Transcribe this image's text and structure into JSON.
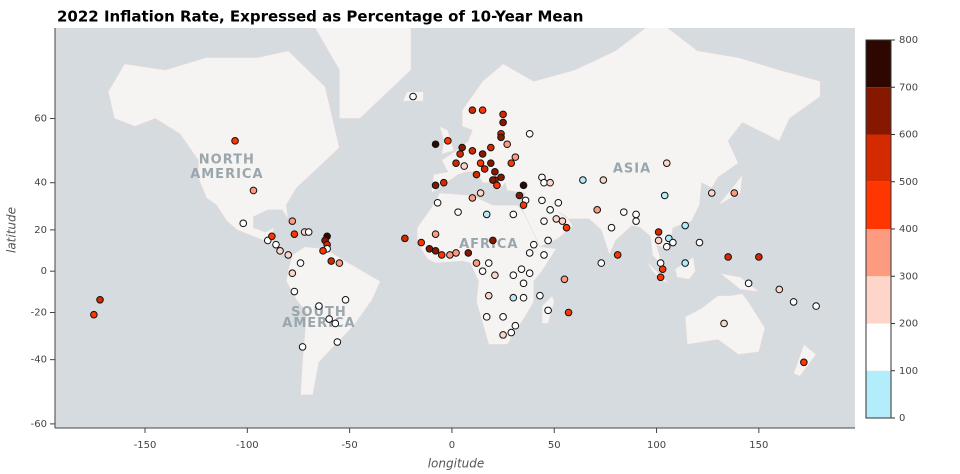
{
  "chart_data": {
    "type": "scatter",
    "title": "2022 Inflation Rate, Expressed as Percentage of 10-Year Mean",
    "x_label": "longitude",
    "y_label": "latitude",
    "y_scale": "mercator",
    "xlim": [
      -194,
      197
    ],
    "ylim": [
      -61,
      76
    ],
    "xticks": [
      -150,
      -100,
      -50,
      0,
      50,
      100,
      150
    ],
    "yticks": [
      -60,
      -40,
      -20,
      0,
      20,
      40,
      60
    ],
    "map_labels": [
      "NORTH",
      "AMERICA",
      "SOUTH",
      "AMERICA",
      "AFRICA",
      "ASIA"
    ],
    "x": [
      -172,
      -175,
      -106,
      -97,
      -102,
      -90,
      -88,
      -86,
      -84,
      -80,
      -77,
      -72,
      -70,
      -61,
      -62,
      -61,
      -61,
      -63,
      -78,
      -74,
      -78,
      -77,
      -65,
      -57,
      -73,
      -56,
      -59,
      -55,
      -52,
      -60,
      -19,
      -8,
      -2,
      2,
      -4,
      -8,
      5,
      4,
      10,
      6,
      14,
      15,
      19,
      19,
      24,
      25,
      24,
      25,
      15,
      10,
      27,
      31,
      24,
      21,
      16,
      21,
      20,
      22,
      12,
      14,
      29,
      33,
      35,
      36,
      44,
      45,
      48,
      38,
      64,
      74,
      52,
      44,
      45,
      35,
      51,
      54,
      56,
      48,
      47,
      -23,
      -15,
      -11,
      -8,
      -7,
      3,
      10,
      17,
      30,
      20,
      -5,
      -1,
      -8,
      2,
      8,
      12,
      15,
      18,
      21,
      30,
      34,
      38,
      45,
      38,
      35,
      30,
      35,
      18,
      17,
      25,
      29,
      25,
      31,
      47,
      57,
      55,
      43,
      40,
      71,
      78,
      73,
      81,
      84,
      90,
      90,
      101,
      101,
      105,
      106,
      108,
      102,
      103,
      114,
      102,
      114,
      104,
      105,
      121,
      127,
      138,
      135,
      145,
      133,
      172,
      160,
      167,
      178,
      150
    ],
    "y": [
      -14,
      -21,
      54,
      37,
      23,
      15,
      17,
      13,
      10,
      8,
      18,
      19,
      19,
      17,
      15,
      13,
      11,
      10,
      24,
      4,
      -1,
      -10,
      -17,
      -25,
      -35,
      -33,
      5,
      4,
      -14,
      -23,
      65,
      53,
      54,
      47,
      40,
      39,
      52,
      50,
      51,
      46,
      47,
      50,
      47,
      52,
      56,
      59,
      55,
      61,
      62,
      62,
      53,
      49,
      42,
      44,
      45,
      41,
      41,
      39,
      43,
      36,
      47,
      35,
      39,
      33,
      42,
      40,
      40,
      56,
      41,
      41,
      32,
      33,
      24,
      31,
      25,
      24,
      21,
      29,
      15,
      16,
      14,
      11,
      18,
      32,
      28,
      34,
      27,
      27,
      15,
      8,
      8,
      10,
      9,
      9,
      4,
      0,
      4,
      -2,
      -2,
      1,
      9,
      8,
      -1,
      -6,
      -13,
      -13,
      -12,
      -22,
      -22,
      -29,
      -30,
      -26,
      -19,
      -20,
      -4,
      -12,
      13,
      29,
      21,
      4,
      8,
      28,
      27,
      24,
      15,
      19,
      12,
      16,
      14,
      4,
      1,
      4,
      -3,
      22,
      35,
      47,
      14,
      36,
      36,
      7,
      -6,
      -25,
      -41,
      -9,
      -15,
      -17,
      7
    ],
    "values": [
      550,
      450,
      450,
      350,
      150,
      150,
      450,
      150,
      250,
      250,
      450,
      250,
      150,
      750,
      650,
      550,
      150,
      450,
      350,
      150,
      250,
      150,
      150,
      150,
      150,
      150,
      550,
      350,
      150,
      150,
      150,
      750,
      450,
      550,
      550,
      650,
      650,
      550,
      550,
      250,
      450,
      650,
      650,
      550,
      550,
      650,
      650,
      550,
      450,
      550,
      350,
      350,
      650,
      650,
      550,
      550,
      650,
      450,
      550,
      250,
      450,
      650,
      750,
      150,
      150,
      150,
      250,
      150,
      50,
      250,
      150,
      150,
      150,
      450,
      250,
      250,
      450,
      150,
      150,
      550,
      450,
      650,
      350,
      150,
      150,
      350,
      50,
      150,
      650,
      450,
      350,
      650,
      350,
      650,
      350,
      150,
      150,
      250,
      150,
      150,
      150,
      150,
      150,
      150,
      50,
      150,
      250,
      150,
      150,
      150,
      250,
      150,
      150,
      450,
      350,
      150,
      150,
      350,
      150,
      150,
      450,
      150,
      150,
      150,
      250,
      550,
      150,
      50,
      150,
      150,
      450,
      50,
      450,
      50,
      50,
      250,
      150,
      250,
      350,
      550,
      150,
      250,
      450,
      250,
      150,
      150,
      550
    ],
    "colorbar": {
      "lim": [
        0,
        800
      ],
      "ticks": [
        0,
        100,
        200,
        300,
        400,
        500,
        600,
        700,
        800
      ],
      "colors": [
        "#b3ecfa",
        "#ffffff",
        "#fdd5c9",
        "#fc9b7f",
        "#ff3600",
        "#d42a00",
        "#861800",
        "#2e0800"
      ]
    }
  }
}
